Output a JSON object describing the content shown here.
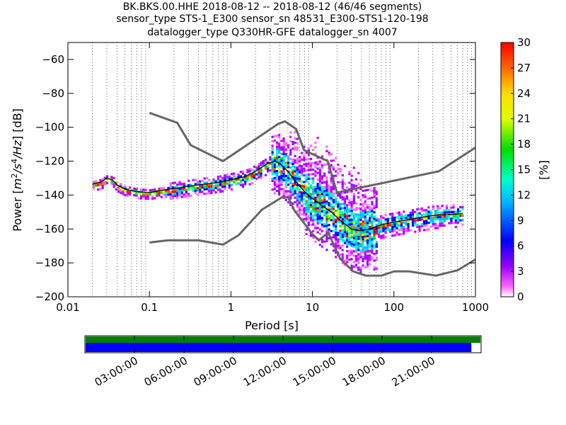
{
  "figure": {
    "title_lines": [
      "BK.BKS.00.HHE   2018-08-12 -- 2018-08-12  (46/46 segments)",
      "sensor_type STS-1_E300 sensor_sn 48531_E300-STS1-120-198",
      "datalogger_type Q330HR-GFE datalogger_sn 4007"
    ]
  },
  "chart_data": [
    {
      "type": "heatmap",
      "title": "BK.BKS.00.HHE   2018-08-12 -- 2018-08-12  (46/46 segments)",
      "xlabel": "Period [s]",
      "ylabel": "Power [m²/s⁴/Hz] [dB]",
      "ylabel_parts": {
        "prefix": "Power [",
        "m": "m",
        "m_exp": "2",
        "s": "/s",
        "s_exp": "4",
        "hz": "/Hz",
        "suffix": "] [dB]"
      },
      "xscale": "log",
      "xlim": [
        0.01,
        1000
      ],
      "ylim": [
        -200,
        -50
      ],
      "xticks": [
        0.01,
        0.1,
        1,
        10,
        100,
        1000
      ],
      "xtick_labels": [
        "0.01",
        "0.1",
        "1",
        "10",
        "100",
        "1000"
      ],
      "yticks": [
        -60,
        -80,
        -100,
        -120,
        -140,
        -160,
        -180,
        -200
      ],
      "ytick_labels": [
        "−60",
        "−80",
        "−100",
        "−120",
        "−140",
        "−160",
        "−180",
        "−200"
      ],
      "grid": "dotted vertical at log sub-decades",
      "noise_models": [
        {
          "name": "NHNM",
          "color": "#666666",
          "points": [
            [
              0.1,
              -91.5
            ],
            [
              0.22,
              -97.4
            ],
            [
              0.32,
              -110.5
            ],
            [
              0.8,
              -120
            ],
            [
              3.8,
              -98
            ],
            [
              4.6,
              -96.5
            ],
            [
              6.3,
              -101
            ],
            [
              7.9,
              -113.5
            ],
            [
              15.4,
              -120
            ],
            [
              20,
              -138.5
            ],
            [
              354.8,
              -126
            ],
            [
              1000,
              -112
            ]
          ]
        },
        {
          "name": "NLNM",
          "color": "#666666",
          "points": [
            [
              0.1,
              -168
            ],
            [
              0.17,
              -166.7
            ],
            [
              0.4,
              -166.7
            ],
            [
              0.8,
              -169.2
            ],
            [
              1.24,
              -163.7
            ],
            [
              2.4,
              -148.6
            ],
            [
              4.3,
              -141.1
            ],
            [
              5,
              -141.1
            ],
            [
              6,
              -149
            ],
            [
              10,
              -163
            ],
            [
              12,
              -166.7
            ],
            [
              15.6,
              -162.1
            ],
            [
              21.9,
              -177.5
            ],
            [
              31.6,
              -185
            ],
            [
              45,
              -187.5
            ],
            [
              70,
              -187.5
            ],
            [
              101,
              -185
            ],
            [
              154,
              -185
            ],
            [
              328,
              -187.5
            ],
            [
              600,
              -184.4
            ],
            [
              1000,
              -178
            ]
          ]
        }
      ],
      "median_curve": {
        "color": "#000000",
        "points": [
          [
            0.02,
            -133.5
          ],
          [
            0.025,
            -132.5
          ],
          [
            0.03,
            -130
          ],
          [
            0.035,
            -131
          ],
          [
            0.04,
            -134
          ],
          [
            0.05,
            -136.5
          ],
          [
            0.07,
            -138
          ],
          [
            0.1,
            -138.5
          ],
          [
            0.15,
            -137
          ],
          [
            0.25,
            -135.5
          ],
          [
            0.4,
            -134
          ],
          [
            0.7,
            -132.5
          ],
          [
            1,
            -131
          ],
          [
            1.5,
            -129
          ],
          [
            2,
            -126
          ],
          [
            2.8,
            -121.5
          ],
          [
            3.5,
            -120
          ],
          [
            4,
            -121.5
          ],
          [
            5,
            -126
          ],
          [
            6,
            -131
          ],
          [
            8,
            -138
          ],
          [
            10,
            -142
          ],
          [
            13,
            -146
          ],
          [
            17,
            -150
          ],
          [
            22,
            -155
          ],
          [
            30,
            -160
          ],
          [
            38,
            -161
          ],
          [
            50,
            -160
          ],
          [
            70,
            -157.5
          ],
          [
            100,
            -156
          ],
          [
            200,
            -153.5
          ],
          [
            300,
            -152
          ],
          [
            700,
            -151
          ]
        ]
      },
      "colorbar": {
        "label": "[%]",
        "min": 0,
        "max": 30,
        "ticks": [
          0,
          3,
          6,
          9,
          12,
          15,
          18,
          21,
          24,
          27,
          30
        ],
        "tick_labels": [
          "0",
          "3",
          "6",
          "9",
          "12",
          "15",
          "18",
          "21",
          "24",
          "27",
          "30"
        ]
      }
    },
    {
      "type": "bar",
      "description_role": "data coverage timeline",
      "bars": [
        {
          "name": "coverage",
          "color": "#008000",
          "fraction": 1.0
        },
        {
          "name": "segments",
          "color": "#0000ff",
          "fraction": 0.977
        }
      ],
      "xtick_labels": [
        "03:00:00",
        "06:00:00",
        "09:00:00",
        "12:00:00",
        "15:00:00",
        "18:00:00",
        "21:00:00"
      ],
      "xtick_hours": [
        3,
        6,
        9,
        12,
        15,
        18,
        21
      ]
    }
  ]
}
